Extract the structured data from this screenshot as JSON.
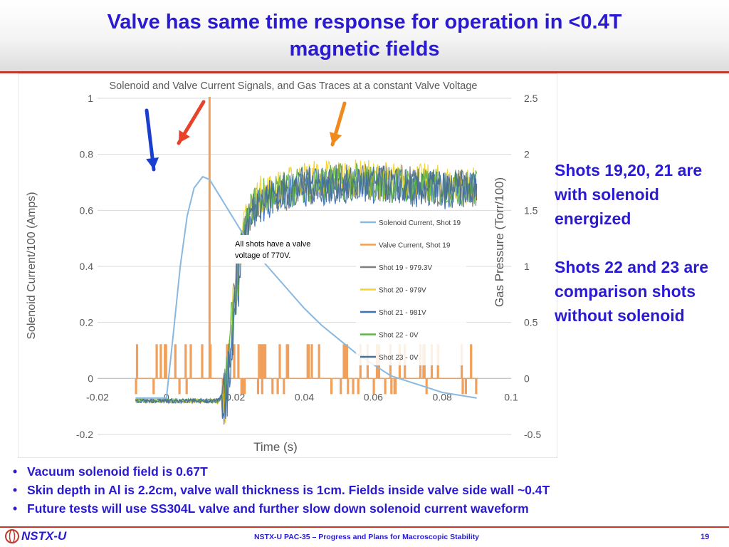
{
  "slide": {
    "title_line1": "Valve has same time response for operation in <0.4T",
    "title_line2": "magnetic fields",
    "side_para1": "Shots 19,20, 21 are with solenoid energized",
    "side_para2": "Shots 22 and 23 are comparison shots without solenoid",
    "bullets": [
      "Vacuum solenoid field is 0.67T",
      "Skin depth in Al is 2.2cm, valve wall thickness is 1cm. Fields inside valve side wall ~0.4T",
      "Future tests will use SS304L valve and further slow down solenoid current waveform"
    ],
    "bullet_symbol": "•",
    "footer_logo_text": "NSTX-U",
    "footer_text": "NSTX-U PAC-35 – Progress and Plans for Macroscopic Stability",
    "page_number": "19"
  },
  "chart_data": {
    "type": "line",
    "title": "Solenoid and Valve Current Signals, and Gas Traces at a constant Valve Voltage",
    "xlabel": "Time (s)",
    "ylabel": "Solenoid Current/100 (Amps)",
    "y2label": "Gas Pressure (Torr/100)",
    "xlim": [
      -0.02,
      0.1
    ],
    "ylim": [
      -0.2,
      1.0
    ],
    "y2lim": [
      -0.5,
      2.5
    ],
    "x_ticks": [
      -0.02,
      0,
      0.02,
      0.04,
      0.06,
      0.08,
      0.1
    ],
    "x_tick_labels": [
      "-0.02",
      "0",
      "0.02",
      "0.04",
      "0.06",
      "0.08",
      "0.1"
    ],
    "y_ticks": [
      -0.2,
      0,
      0.2,
      0.4,
      0.6,
      0.8,
      1
    ],
    "y_tick_labels": [
      "-0.2",
      "0",
      "0.2",
      "0.4",
      "0.6",
      "0.8",
      "1"
    ],
    "y2_ticks": [
      -0.5,
      0,
      0.5,
      1,
      1.5,
      2,
      2.5
    ],
    "y2_tick_labels": [
      "-0.5",
      "0",
      "0.5",
      "1",
      "1.5",
      "2",
      "2.5"
    ],
    "grid": "horizontal",
    "legend_position": "center-right",
    "annotation": "All  shots have a valve voltage of 770V.",
    "arrow_colors": {
      "blue": "#1a3fd0",
      "red": "#e8432a",
      "orange": "#f08a1c"
    },
    "series": [
      {
        "name": "Solenoid Current, Shot 19",
        "axis": "left",
        "color": "#8ab8de",
        "x": [
          -0.009,
          -0.005,
          -0.002,
          0.0,
          0.002,
          0.004,
          0.006,
          0.008,
          0.0105,
          0.0125,
          0.015,
          0.02,
          0.025,
          0.03,
          0.035,
          0.04,
          0.045,
          0.05,
          0.055,
          0.06,
          0.065,
          0.07,
          0.075,
          0.08,
          0.085,
          0.09
        ],
        "y": [
          -0.07,
          -0.07,
          -0.07,
          -0.07,
          0.16,
          0.4,
          0.58,
          0.68,
          0.72,
          0.71,
          0.66,
          0.56,
          0.46,
          0.39,
          0.32,
          0.25,
          0.19,
          0.14,
          0.09,
          0.05,
          0.01,
          -0.01,
          -0.03,
          -0.05,
          -0.06,
          -0.07
        ]
      },
      {
        "name": "Valve Current, Shot 19",
        "axis": "left",
        "color": "#f0a05a",
        "spike_x": 0.0125,
        "spike_peak": 1.0,
        "baseline": 0.0,
        "noise_level": 0.12
      },
      {
        "name": "Shot 19 - 979.3V",
        "axis": "right",
        "color": "#7f7f7f",
        "x": [
          -0.009,
          0.015,
          0.0175,
          0.02,
          0.0225,
          0.025,
          0.0275,
          0.03,
          0.035,
          0.04,
          0.05,
          0.06,
          0.07,
          0.08,
          0.09
        ],
        "y": [
          -0.2,
          -0.2,
          -0.1,
          0.8,
          1.3,
          1.55,
          1.6,
          1.62,
          1.65,
          1.7,
          1.75,
          1.75,
          1.73,
          1.7,
          1.7
        ]
      },
      {
        "name": "Shot 20 - 979V",
        "axis": "right",
        "color": "#f5d328",
        "x": [
          -0.009,
          0.015,
          0.0175,
          0.02,
          0.0225,
          0.025,
          0.0275,
          0.03,
          0.035,
          0.04,
          0.05,
          0.06,
          0.07,
          0.08,
          0.09
        ],
        "y": [
          -0.2,
          -0.2,
          -0.1,
          0.85,
          1.35,
          1.6,
          1.65,
          1.68,
          1.72,
          1.78,
          1.8,
          1.78,
          1.76,
          1.74,
          1.72
        ]
      },
      {
        "name": "Shot 21 - 981V",
        "axis": "right",
        "color": "#3a73b8",
        "x": [
          -0.009,
          0.015,
          0.0175,
          0.02,
          0.0225,
          0.025,
          0.0275,
          0.03,
          0.035,
          0.04,
          0.05,
          0.06,
          0.07,
          0.08,
          0.09
        ],
        "y": [
          -0.2,
          -0.2,
          -0.1,
          0.75,
          1.25,
          1.5,
          1.56,
          1.6,
          1.66,
          1.7,
          1.72,
          1.72,
          1.7,
          1.68,
          1.68
        ]
      },
      {
        "name": "Shot 22 - 0V",
        "axis": "right",
        "color": "#63b34a",
        "x": [
          -0.009,
          0.015,
          0.0175,
          0.02,
          0.0225,
          0.025,
          0.0275,
          0.03,
          0.035,
          0.04,
          0.05,
          0.06,
          0.07,
          0.08,
          0.09
        ],
        "y": [
          -0.2,
          -0.2,
          -0.1,
          0.82,
          1.3,
          1.55,
          1.62,
          1.65,
          1.7,
          1.74,
          1.76,
          1.75,
          1.72,
          1.7,
          1.7
        ]
      },
      {
        "name": "Shot 23 - 0V",
        "axis": "right",
        "color": "#4a6f91",
        "x": [
          -0.009,
          0.015,
          0.0175,
          0.02,
          0.0225,
          0.025,
          0.0275,
          0.03,
          0.035,
          0.04,
          0.05,
          0.06,
          0.07,
          0.08,
          0.09
        ],
        "y": [
          -0.2,
          -0.2,
          -0.1,
          0.78,
          1.28,
          1.52,
          1.6,
          1.63,
          1.68,
          1.72,
          1.74,
          1.74,
          1.71,
          1.69,
          1.69
        ]
      }
    ]
  }
}
